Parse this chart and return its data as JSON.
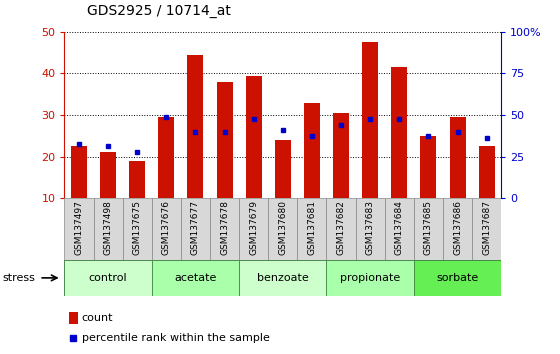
{
  "title": "GDS2925 / 10714_at",
  "samples": [
    "GSM137497",
    "GSM137498",
    "GSM137675",
    "GSM137676",
    "GSM137677",
    "GSM137678",
    "GSM137679",
    "GSM137680",
    "GSM137681",
    "GSM137682",
    "GSM137683",
    "GSM137684",
    "GSM137685",
    "GSM137686",
    "GSM137687"
  ],
  "count_values": [
    22.5,
    21.0,
    19.0,
    29.5,
    44.5,
    38.0,
    39.5,
    24.0,
    33.0,
    30.5,
    47.5,
    41.5,
    25.0,
    29.5,
    22.5
  ],
  "percentile_values": [
    23.0,
    22.5,
    21.0,
    29.5,
    26.0,
    26.0,
    29.0,
    26.5,
    25.0,
    27.5,
    29.0,
    29.0,
    25.0,
    26.0,
    24.5
  ],
  "groups": [
    {
      "label": "control",
      "start": 0,
      "end": 3,
      "color": "#ccffcc"
    },
    {
      "label": "acetate",
      "start": 3,
      "end": 6,
      "color": "#aaffaa"
    },
    {
      "label": "benzoate",
      "start": 6,
      "end": 9,
      "color": "#ccffcc"
    },
    {
      "label": "propionate",
      "start": 9,
      "end": 12,
      "color": "#aaffaa"
    },
    {
      "label": "sorbate",
      "start": 12,
      "end": 15,
      "color": "#66ee55"
    }
  ],
  "ylim_left": [
    10,
    50
  ],
  "ylim_right": [
    0,
    100
  ],
  "yticks_left": [
    10,
    20,
    30,
    40,
    50
  ],
  "yticks_right": [
    0,
    25,
    50,
    75,
    100
  ],
  "bar_color": "#cc1100",
  "percentile_color": "#0000cc",
  "grid_color": "#000000",
  "axis_color_left": "#cc1100",
  "axis_color_right": "#0000cc",
  "stress_label": "stress",
  "legend_count": "count",
  "legend_pct": "percentile rank within the sample"
}
